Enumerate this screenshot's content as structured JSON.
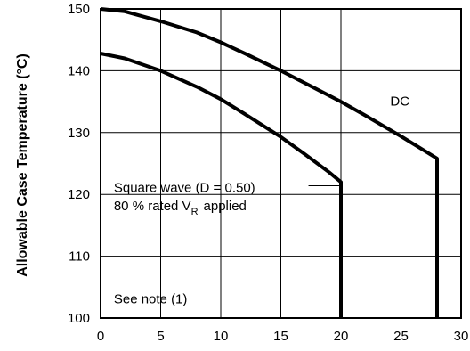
{
  "chart_data": {
    "type": "line",
    "title": "",
    "xlabel": "",
    "ylabel": "Allowable Case Temperature (°C)",
    "xlim": [
      0,
      30
    ],
    "ylim": [
      100,
      150
    ],
    "x_ticks": [
      "0",
      "5",
      "10",
      "15",
      "20",
      "25",
      "30"
    ],
    "y_ticks": [
      "100",
      "110",
      "120",
      "130",
      "140",
      "150"
    ],
    "grid": true,
    "series": [
      {
        "name": "DC",
        "points": [
          [
            0,
            150
          ],
          [
            2,
            149.6
          ],
          [
            5,
            148
          ],
          [
            8,
            146.2
          ],
          [
            10,
            144.6
          ],
          [
            12,
            142.8
          ],
          [
            15,
            140
          ],
          [
            18,
            137
          ],
          [
            20,
            135
          ],
          [
            22,
            132.8
          ],
          [
            25,
            129.4
          ],
          [
            27,
            127
          ],
          [
            28,
            125.8
          ],
          [
            28,
            100
          ]
        ]
      },
      {
        "name": "",
        "points": [
          [
            0,
            142.8
          ],
          [
            2,
            142
          ],
          [
            5,
            140
          ],
          [
            8,
            137.4
          ],
          [
            10,
            135.4
          ],
          [
            12,
            133
          ],
          [
            15,
            129.3
          ],
          [
            17,
            126.5
          ],
          [
            19,
            123.6
          ],
          [
            20,
            122
          ],
          [
            20,
            100
          ]
        ]
      }
    ],
    "annotations": {
      "dc_label": "DC",
      "square_wave_line1": "Square wave (D = 0.50)",
      "square_wave_line2_prefix": "80 % rated V",
      "square_wave_line2_sub": "R",
      "square_wave_line2_suffix": "applied",
      "note": "See note (1)"
    }
  }
}
